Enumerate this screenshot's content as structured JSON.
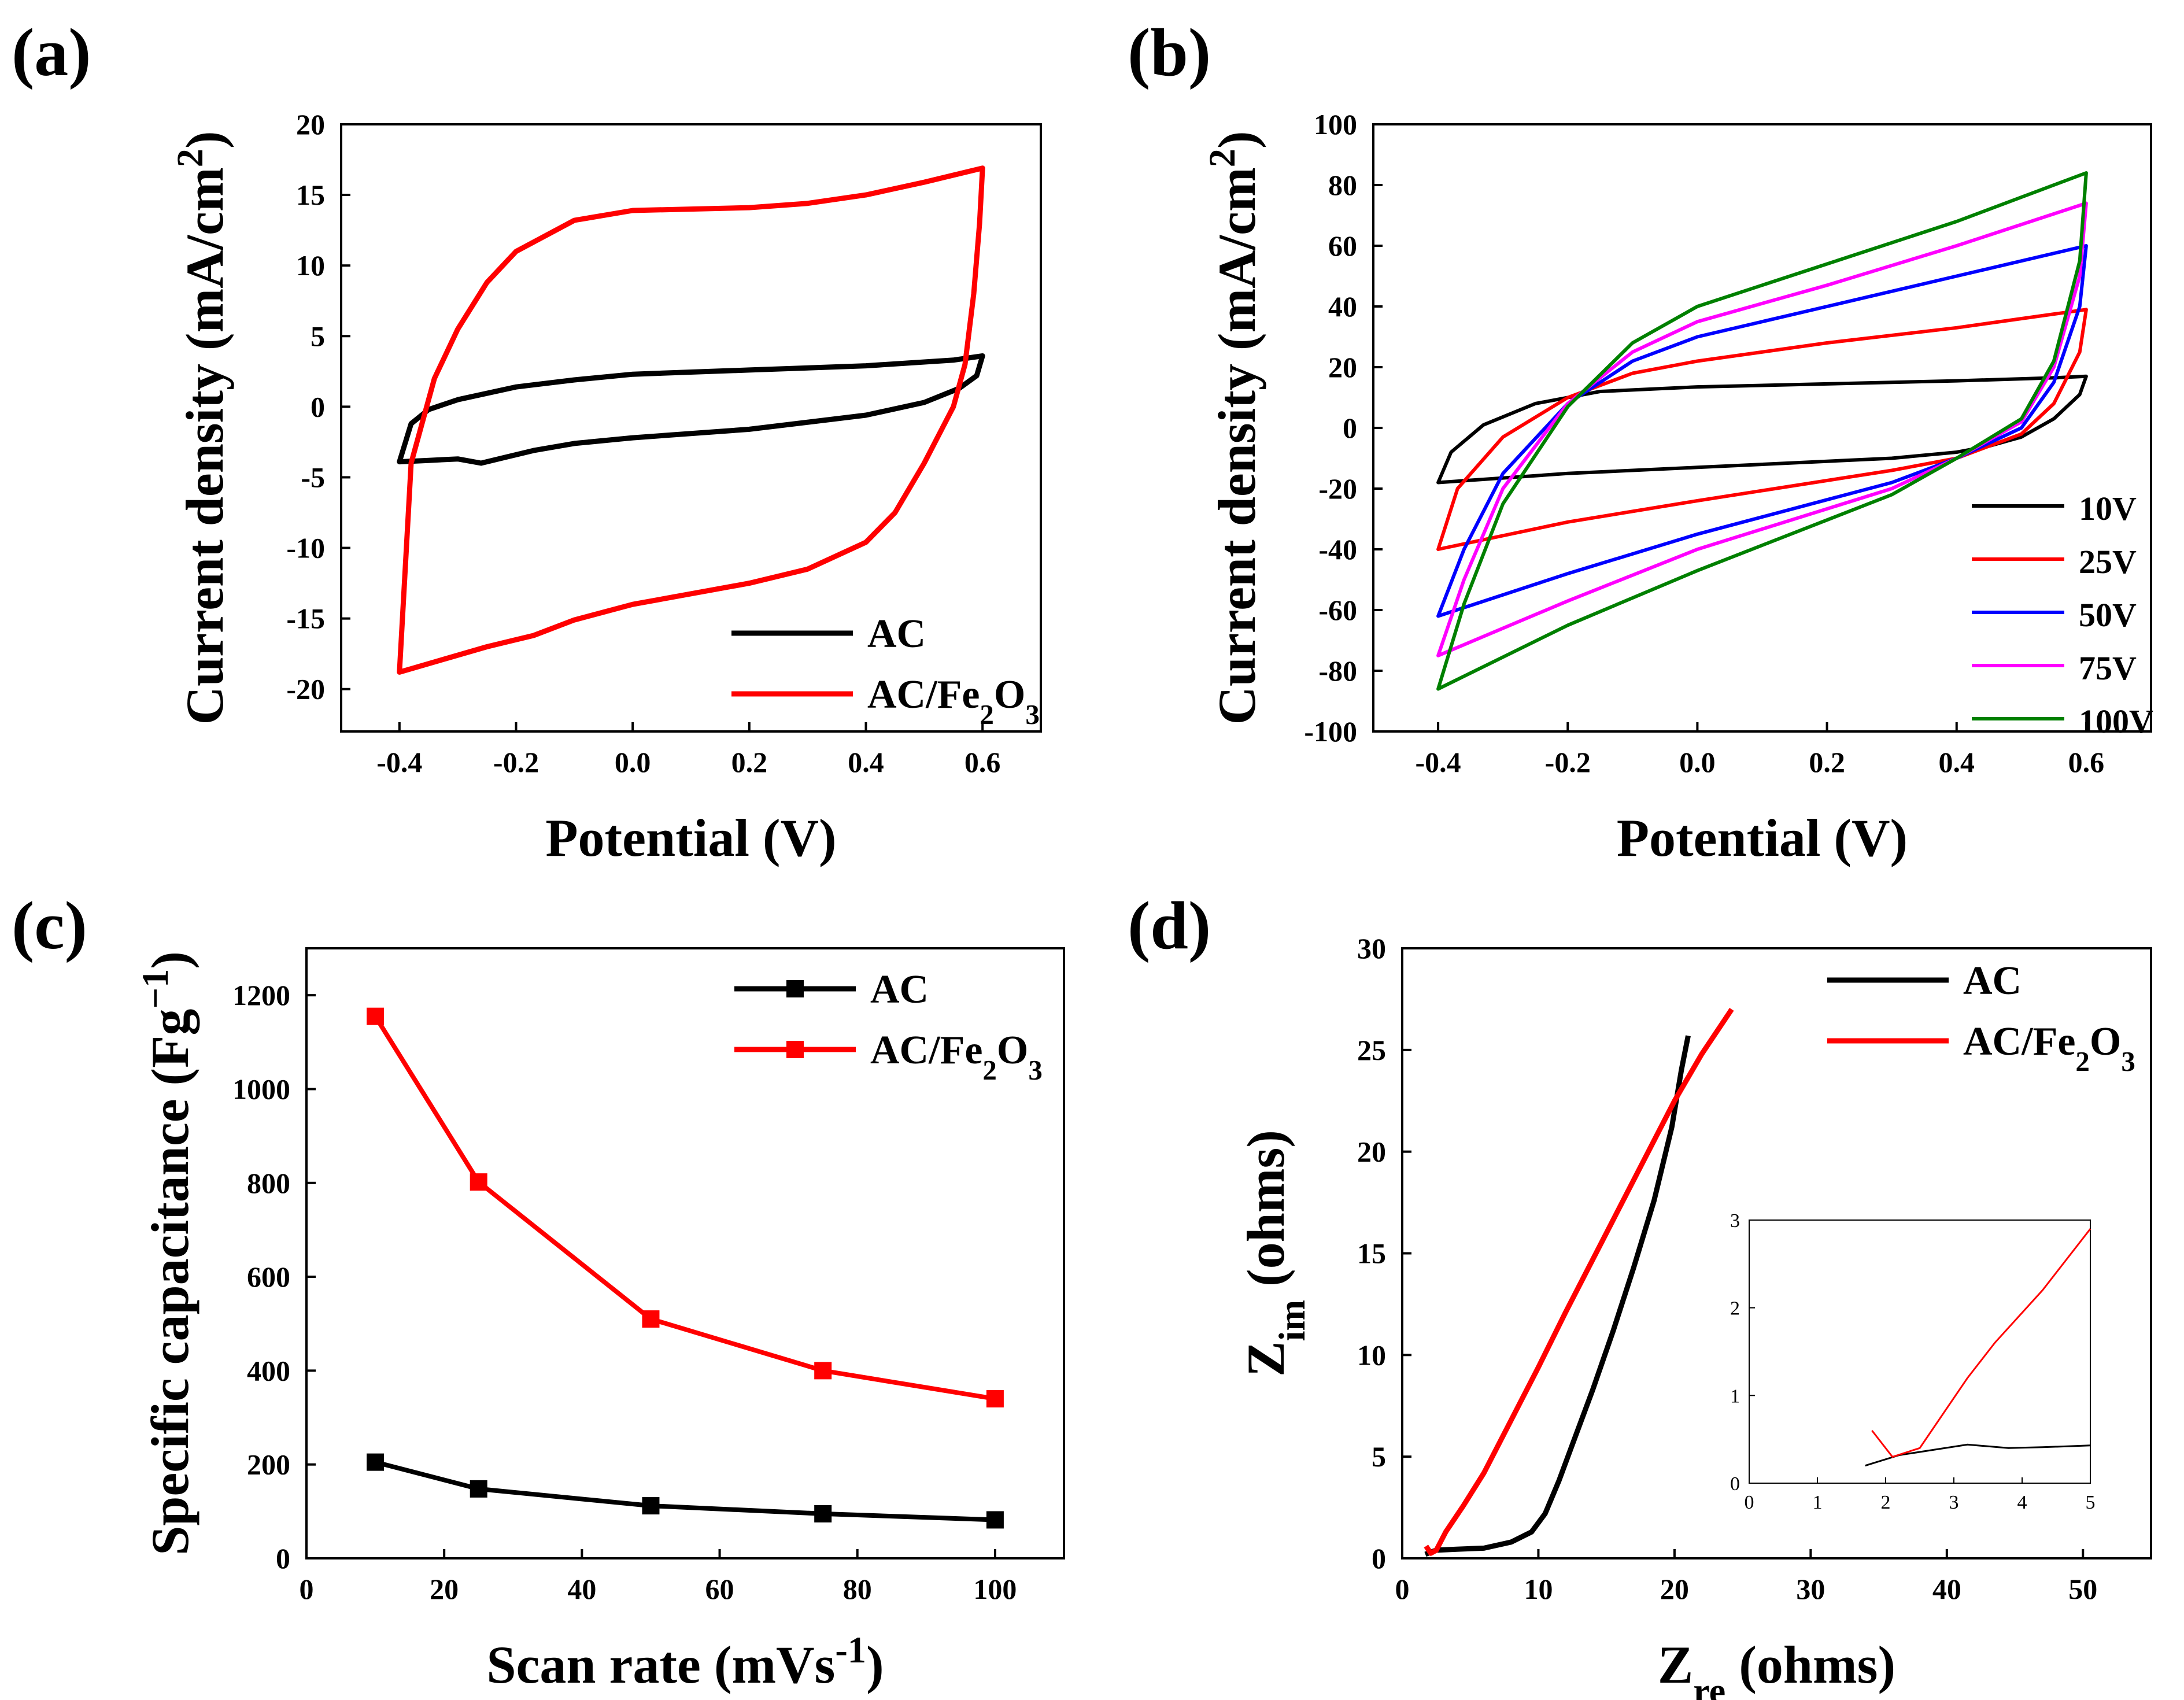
{
  "figure": {
    "panels": [
      {
        "id": "a",
        "label": "(a)"
      },
      {
        "id": "b",
        "label": "(b)"
      },
      {
        "id": "c",
        "label": "(c)"
      },
      {
        "id": "d",
        "label": "(d)"
      }
    ]
  },
  "chart_data": [
    {
      "id": "a",
      "type": "line",
      "subtype": "cyclic-voltammogram",
      "xlabel": "Potential (V)",
      "ylabel": "Current density (mA/cm2)",
      "xlim": [
        -0.5,
        0.7
      ],
      "ylim": [
        -23,
        20
      ],
      "xticks": [
        -0.4,
        -0.2,
        0.0,
        0.2,
        0.4,
        0.6
      ],
      "xtick_labels": [
        "-0.4",
        "-0.2",
        "0.0",
        "0.2",
        "0.4",
        "0.6"
      ],
      "yticks": [
        -20,
        -15,
        -10,
        -5,
        0,
        5,
        10,
        15,
        20
      ],
      "ytick_labels": [
        "-20",
        "-15",
        "-10",
        "-5",
        "0",
        "5",
        "10",
        "15",
        "20"
      ],
      "legend_position": "bottom-right",
      "series": [
        {
          "name": "AC",
          "color": "#000000",
          "points": [
            [
              -0.4,
              -3.9
            ],
            [
              -0.38,
              -1.2
            ],
            [
              -0.35,
              -0.2
            ],
            [
              -0.3,
              0.5
            ],
            [
              -0.2,
              1.4
            ],
            [
              -0.1,
              1.9
            ],
            [
              0.0,
              2.3
            ],
            [
              0.2,
              2.6
            ],
            [
              0.4,
              2.9
            ],
            [
              0.55,
              3.3
            ],
            [
              0.6,
              3.6
            ],
            [
              0.59,
              2.2
            ],
            [
              0.56,
              1.3
            ],
            [
              0.5,
              0.3
            ],
            [
              0.4,
              -0.6
            ],
            [
              0.2,
              -1.6
            ],
            [
              0.0,
              -2.2
            ],
            [
              -0.1,
              -2.6
            ],
            [
              -0.17,
              -3.1
            ],
            [
              -0.22,
              -3.6
            ],
            [
              -0.26,
              -4.0
            ],
            [
              -0.3,
              -3.7
            ],
            [
              -0.35,
              -3.8
            ],
            [
              -0.4,
              -3.9
            ]
          ]
        },
        {
          "name": "AC/Fe2O3",
          "color": "#ff0000",
          "points": [
            [
              -0.4,
              -18.8
            ],
            [
              -0.38,
              -4
            ],
            [
              -0.34,
              2
            ],
            [
              -0.3,
              5.5
            ],
            [
              -0.25,
              8.8
            ],
            [
              -0.2,
              11
            ],
            [
              -0.1,
              13.2
            ],
            [
              0.0,
              13.9
            ],
            [
              0.2,
              14.1
            ],
            [
              0.3,
              14.4
            ],
            [
              0.4,
              15.0
            ],
            [
              0.5,
              15.9
            ],
            [
              0.6,
              16.9
            ],
            [
              0.595,
              13
            ],
            [
              0.585,
              8
            ],
            [
              0.57,
              3
            ],
            [
              0.55,
              0
            ],
            [
              0.5,
              -4
            ],
            [
              0.45,
              -7.5
            ],
            [
              0.4,
              -9.6
            ],
            [
              0.3,
              -11.5
            ],
            [
              0.2,
              -12.5
            ],
            [
              0.0,
              -14
            ],
            [
              -0.1,
              -15.1
            ],
            [
              -0.17,
              -16.2
            ],
            [
              -0.25,
              -17.0
            ],
            [
              -0.4,
              -18.8
            ]
          ]
        }
      ]
    },
    {
      "id": "b",
      "type": "line",
      "subtype": "cyclic-voltammogram",
      "xlabel": "Potential (V)",
      "ylabel": "Current density (mA/cm2)",
      "xlim": [
        -0.5,
        0.7
      ],
      "ylim": [
        -100,
        100
      ],
      "xticks": [
        -0.4,
        -0.2,
        0.0,
        0.2,
        0.4,
        0.6
      ],
      "xtick_labels": [
        "-0.4",
        "-0.2",
        "0.0",
        "0.2",
        "0.4",
        "0.6"
      ],
      "yticks": [
        -100,
        -80,
        -60,
        -40,
        -20,
        0,
        20,
        40,
        60,
        80,
        100
      ],
      "ytick_labels": [
        "-100",
        "-80",
        "-60",
        "-40",
        "-20",
        "0",
        "20",
        "40",
        "60",
        "80",
        "100"
      ],
      "legend_position": "bottom-right",
      "series": [
        {
          "name": "10V",
          "color": "#000000",
          "points": [
            [
              -0.4,
              -18
            ],
            [
              -0.38,
              -8
            ],
            [
              -0.33,
              1
            ],
            [
              -0.25,
              8
            ],
            [
              -0.15,
              12
            ],
            [
              0.0,
              13.5
            ],
            [
              0.2,
              14.5
            ],
            [
              0.4,
              15.5
            ],
            [
              0.55,
              16.5
            ],
            [
              0.6,
              17
            ],
            [
              0.59,
              11
            ],
            [
              0.55,
              3
            ],
            [
              0.5,
              -3
            ],
            [
              0.45,
              -6
            ],
            [
              0.4,
              -8
            ],
            [
              0.3,
              -10
            ],
            [
              0.0,
              -13
            ],
            [
              -0.2,
              -15
            ],
            [
              -0.4,
              -18
            ]
          ]
        },
        {
          "name": "25V",
          "color": "#ff0000",
          "points": [
            [
              -0.4,
              -40
            ],
            [
              -0.37,
              -20
            ],
            [
              -0.3,
              -3
            ],
            [
              -0.2,
              10
            ],
            [
              -0.1,
              18
            ],
            [
              0.0,
              22
            ],
            [
              0.2,
              28
            ],
            [
              0.4,
              33
            ],
            [
              0.6,
              39
            ],
            [
              0.59,
              25
            ],
            [
              0.55,
              8
            ],
            [
              0.5,
              -2
            ],
            [
              0.4,
              -10
            ],
            [
              0.3,
              -14
            ],
            [
              0.0,
              -24
            ],
            [
              -0.2,
              -31
            ],
            [
              -0.4,
              -40
            ]
          ]
        },
        {
          "name": "50V",
          "color": "#0000ff",
          "points": [
            [
              -0.4,
              -62
            ],
            [
              -0.36,
              -40
            ],
            [
              -0.3,
              -15
            ],
            [
              -0.2,
              8
            ],
            [
              -0.1,
              22
            ],
            [
              0.0,
              30
            ],
            [
              0.2,
              40
            ],
            [
              0.4,
              50
            ],
            [
              0.6,
              60
            ],
            [
              0.59,
              40
            ],
            [
              0.55,
              15
            ],
            [
              0.5,
              0
            ],
            [
              0.4,
              -10
            ],
            [
              0.3,
              -18
            ],
            [
              0.0,
              -35
            ],
            [
              -0.2,
              -48
            ],
            [
              -0.4,
              -62
            ]
          ]
        },
        {
          "name": "75V",
          "color": "#ff00ff",
          "points": [
            [
              -0.4,
              -75
            ],
            [
              -0.36,
              -50
            ],
            [
              -0.3,
              -20
            ],
            [
              -0.2,
              8
            ],
            [
              -0.1,
              25
            ],
            [
              0.0,
              35
            ],
            [
              0.2,
              47
            ],
            [
              0.4,
              60
            ],
            [
              0.6,
              74
            ],
            [
              0.59,
              50
            ],
            [
              0.55,
              20
            ],
            [
              0.5,
              2
            ],
            [
              0.4,
              -10
            ],
            [
              0.3,
              -20
            ],
            [
              0.0,
              -40
            ],
            [
              -0.2,
              -57
            ],
            [
              -0.4,
              -75
            ]
          ]
        },
        {
          "name": "100V",
          "color": "#008000",
          "points": [
            [
              -0.4,
              -86
            ],
            [
              -0.36,
              -58
            ],
            [
              -0.3,
              -25
            ],
            [
              -0.2,
              7
            ],
            [
              -0.1,
              28
            ],
            [
              0.0,
              40
            ],
            [
              0.2,
              54
            ],
            [
              0.4,
              68
            ],
            [
              0.6,
              84
            ],
            [
              0.59,
              55
            ],
            [
              0.55,
              22
            ],
            [
              0.5,
              3
            ],
            [
              0.4,
              -10
            ],
            [
              0.3,
              -22
            ],
            [
              0.0,
              -47
            ],
            [
              -0.2,
              -65
            ],
            [
              -0.4,
              -86
            ]
          ]
        }
      ]
    },
    {
      "id": "c",
      "type": "line",
      "subtype": "line-with-markers",
      "xlabel": "Scan rate (mVs-1)",
      "ylabel": "Specific capacitance (Fg-1)",
      "xlim": [
        0,
        110
      ],
      "ylim": [
        0,
        1300
      ],
      "xticks": [
        0,
        20,
        40,
        60,
        80,
        100
      ],
      "xtick_labels": [
        "0",
        "20",
        "40",
        "60",
        "80",
        "100"
      ],
      "yticks": [
        0,
        200,
        400,
        600,
        800,
        1000,
        1200
      ],
      "ytick_labels": [
        "0",
        "200",
        "400",
        "600",
        "800",
        "1000",
        "1200"
      ],
      "legend_position": "top-right",
      "series": [
        {
          "name": "AC",
          "color": "#000000",
          "x": [
            10,
            25,
            50,
            75,
            100
          ],
          "values": [
            205,
            148,
            112,
            95,
            82
          ]
        },
        {
          "name": "AC/Fe2O3",
          "color": "#ff0000",
          "x": [
            10,
            25,
            50,
            75,
            100
          ],
          "values": [
            1155,
            802,
            510,
            400,
            340
          ]
        }
      ]
    },
    {
      "id": "d",
      "type": "line",
      "subtype": "nyquist",
      "xlabel": "Zre (ohms)",
      "ylabel": "Zim (ohms)",
      "xlim": [
        0,
        55
      ],
      "ylim": [
        0,
        30
      ],
      "xticks": [
        0,
        10,
        20,
        30,
        40,
        50
      ],
      "xtick_labels": [
        "0",
        "10",
        "20",
        "30",
        "40",
        "50"
      ],
      "yticks": [
        0,
        5,
        10,
        15,
        20,
        25,
        30
      ],
      "ytick_labels": [
        "0",
        "5",
        "10",
        "15",
        "20",
        "25",
        "30"
      ],
      "legend_position": "top-right",
      "series": [
        {
          "name": "AC",
          "color": "#000000",
          "points": [
            [
              1.7,
              0.2
            ],
            [
              2.5,
              0.4
            ],
            [
              4,
              0.45
            ],
            [
              6,
              0.5
            ],
            [
              8,
              0.8
            ],
            [
              9.5,
              1.3
            ],
            [
              10.5,
              2.2
            ],
            [
              11.5,
              3.8
            ],
            [
              12.5,
              5.6
            ],
            [
              14,
              8.3
            ],
            [
              15.5,
              11.2
            ],
            [
              17,
              14.3
            ],
            [
              18.5,
              17.6
            ],
            [
              19.8,
              21.2
            ],
            [
              20.5,
              24
            ],
            [
              21,
              25.7
            ]
          ]
        },
        {
          "name": "AC/Fe2O3",
          "color": "#ff0000",
          "points": [
            [
              1.75,
              0.6
            ],
            [
              2.1,
              0.25
            ],
            [
              2.5,
              0.4
            ],
            [
              3.2,
              1.3
            ],
            [
              4.5,
              2.6
            ],
            [
              6,
              4.2
            ],
            [
              8,
              6.8
            ],
            [
              10,
              9.4
            ],
            [
              12,
              12.1
            ],
            [
              14,
              14.7
            ],
            [
              16,
              17.3
            ],
            [
              18,
              19.9
            ],
            [
              20,
              22.5
            ],
            [
              22,
              24.8
            ],
            [
              24.2,
              27
            ]
          ]
        }
      ],
      "inset": {
        "xlim": [
          0,
          5
        ],
        "ylim": [
          0,
          3
        ],
        "xticks": [
          0,
          1,
          2,
          3,
          4,
          5
        ],
        "xtick_labels": [
          "0",
          "1",
          "2",
          "3",
          "4",
          "5"
        ],
        "yticks": [
          0,
          1,
          2,
          3
        ],
        "ytick_labels": [
          "0",
          "1",
          "2",
          "3"
        ],
        "series": [
          {
            "name": "AC",
            "color": "#000000",
            "points": [
              [
                1.7,
                0.2
              ],
              [
                2.2,
                0.32
              ],
              [
                2.7,
                0.38
              ],
              [
                3.2,
                0.44
              ],
              [
                3.5,
                0.42
              ],
              [
                3.8,
                0.4
              ],
              [
                4.3,
                0.41
              ],
              [
                5.0,
                0.43
              ]
            ]
          },
          {
            "name": "AC/Fe2O3",
            "color": "#ff0000",
            "points": [
              [
                1.8,
                0.6
              ],
              [
                2.1,
                0.3
              ],
              [
                2.5,
                0.4
              ],
              [
                3.2,
                1.2
              ],
              [
                3.6,
                1.6
              ],
              [
                4.3,
                2.2
              ],
              [
                5.0,
                2.9
              ]
            ]
          }
        ]
      }
    }
  ]
}
